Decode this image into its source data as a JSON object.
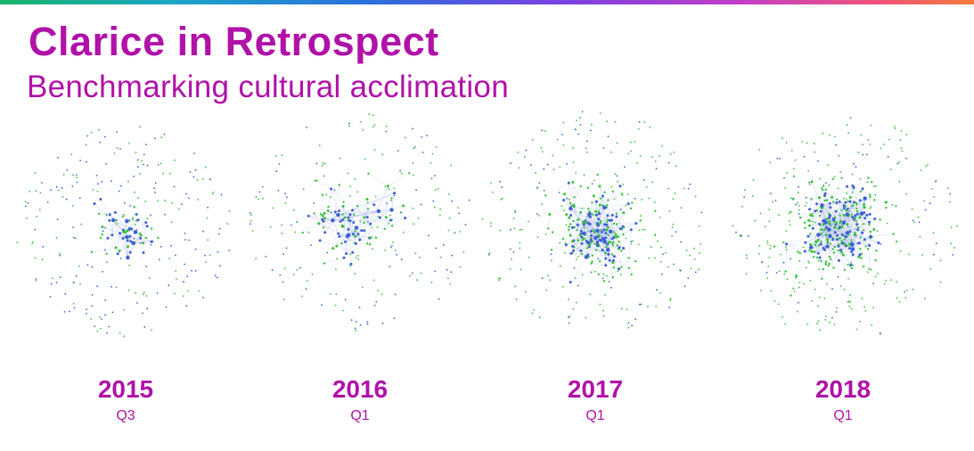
{
  "header": {
    "title": "Clarice in Retrospect",
    "subtitle": "Benchmarking cultural acclimation"
  },
  "colors": {
    "accent": "#b012a8",
    "node_blue": "#3f5fd6",
    "node_green": "#38c23a",
    "edge": "#8ea0e6"
  },
  "periods": [
    {
      "year": "2015",
      "quarter": "Q3"
    },
    {
      "year": "2016",
      "quarter": "Q1"
    },
    {
      "year": "2017",
      "quarter": "Q1"
    },
    {
      "year": "2018",
      "quarter": "Q1"
    }
  ]
}
